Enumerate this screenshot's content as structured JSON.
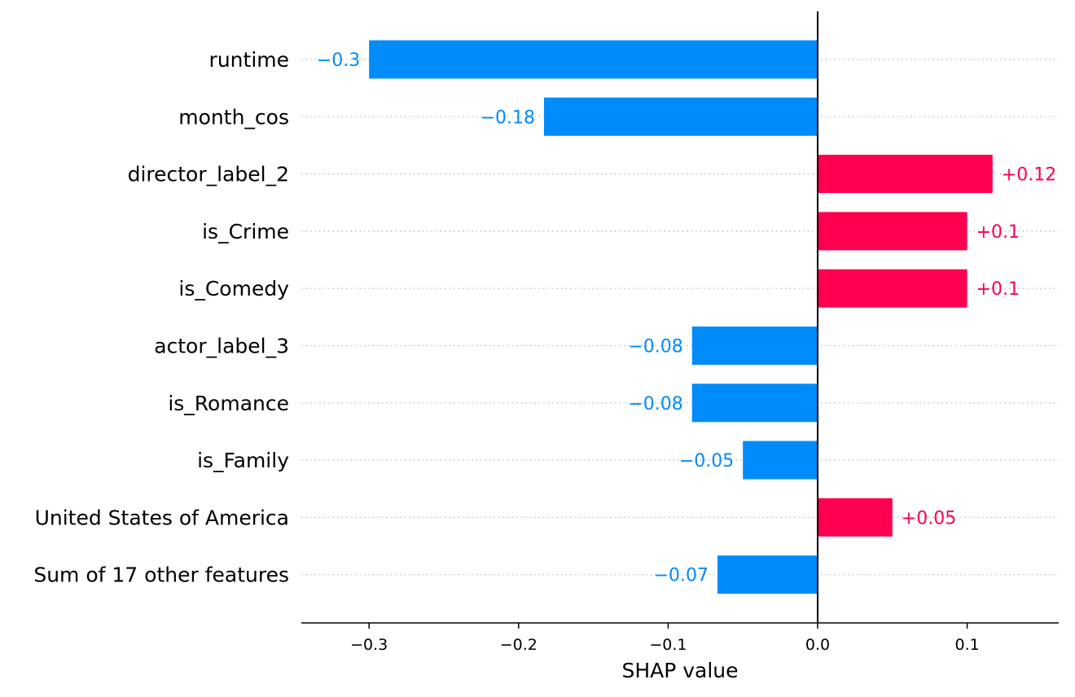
{
  "chart_data": {
    "type": "bar",
    "orientation": "horizontal",
    "title": "",
    "xlabel": "SHAP value",
    "ylabel": "",
    "xlim": [
      -0.343,
      0.16
    ],
    "grid": "dotted horizontal lines per row (right of labels)",
    "legend": "none",
    "categories": [
      "runtime",
      "month_cos",
      "director_label_2",
      "is_Crime",
      "is_Comedy",
      "actor_label_3",
      "is_Romance",
      "is_Family",
      "United States of America",
      "Sum of 17 other features"
    ],
    "values": [
      -0.3,
      -0.183,
      0.117,
      0.1,
      0.1,
      -0.084,
      -0.084,
      -0.05,
      0.05,
      -0.067
    ],
    "value_labels": [
      "−0.3",
      "−0.18",
      "+0.12",
      "+0.1",
      "+0.1",
      "−0.08",
      "−0.08",
      "−0.05",
      "+0.05",
      "−0.07"
    ],
    "x_ticks": [
      -0.3,
      -0.2,
      -0.1,
      0.0,
      0.1
    ],
    "x_tick_labels": [
      "−0.3",
      "−0.2",
      "−0.1",
      "0.0",
      "0.1"
    ],
    "colors": {
      "positive": "#ff0051",
      "negative": "#008bfb",
      "grid": "#b3b3b3",
      "axis": "#000000"
    }
  }
}
